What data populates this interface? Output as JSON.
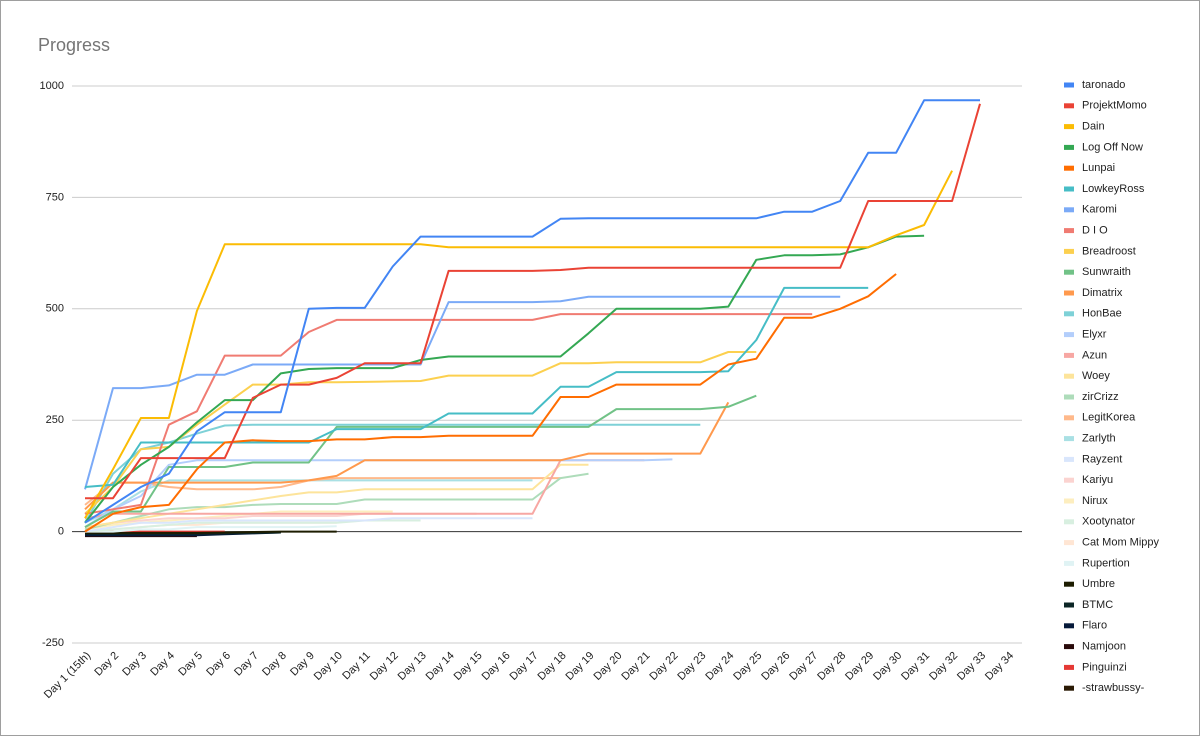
{
  "chart_data": {
    "type": "line",
    "title": "Progress",
    "categories": [
      "Day 1 (15th)",
      "Day 2",
      "Day 3",
      "Day 4",
      "Day 5",
      "Day 6",
      "Day 7",
      "Day 8",
      "Day 9",
      "Day 10",
      "Day 11",
      "Day 12",
      "Day 13",
      "Day 14",
      "Day 15",
      "Day 16",
      "Day 17",
      "Day 18",
      "Day 19",
      "Day 20",
      "Day 21",
      "Day 22",
      "Day 23",
      "Day 24",
      "Day 25",
      "Day 26",
      "Day 27",
      "Day 28",
      "Day 29",
      "Day 30",
      "Day 31",
      "Day 32",
      "Day 33",
      "Day 34"
    ],
    "ylim": [
      -250,
      1000
    ],
    "yticks": [
      -250,
      0,
      250,
      500,
      750,
      1000
    ],
    "grid": true,
    "legend": "right",
    "series": [
      {
        "name": "taronado",
        "color": "#4285f4",
        "values": [
          20,
          60,
          100,
          130,
          225,
          268,
          268,
          268,
          500,
          502,
          502,
          595,
          662,
          662,
          662,
          662,
          662,
          702,
          703,
          703,
          703,
          703,
          703,
          703,
          703,
          718,
          718,
          742,
          850,
          850,
          968,
          968,
          968,
          null
        ]
      },
      {
        "name": "ProjektMomo",
        "color": "#ea4335",
        "values": [
          75,
          75,
          165,
          165,
          165,
          165,
          300,
          330,
          330,
          345,
          378,
          378,
          378,
          585,
          585,
          585,
          585,
          587,
          592,
          592,
          592,
          592,
          592,
          592,
          592,
          592,
          592,
          592,
          742,
          742,
          742,
          742,
          960,
          null
        ]
      },
      {
        "name": "Dain",
        "color": "#fbbc04",
        "values": [
          30,
          140,
          255,
          255,
          495,
          645,
          645,
          645,
          645,
          645,
          645,
          645,
          645,
          638,
          638,
          638,
          638,
          638,
          638,
          638,
          638,
          638,
          638,
          638,
          638,
          638,
          638,
          638,
          638,
          665,
          688,
          810,
          null,
          null
        ]
      },
      {
        "name": "Log Off Now",
        "color": "#34a853",
        "values": [
          20,
          100,
          150,
          190,
          245,
          295,
          295,
          355,
          365,
          367,
          367,
          367,
          385,
          393,
          393,
          393,
          393,
          393,
          445,
          500,
          500,
          500,
          500,
          505,
          610,
          620,
          620,
          622,
          638,
          662,
          664,
          null,
          null,
          null
        ]
      },
      {
        "name": "Lunpai",
        "color": "#ff6d01",
        "values": [
          0,
          40,
          55,
          60,
          140,
          200,
          205,
          203,
          203,
          207,
          207,
          212,
          212,
          215,
          215,
          215,
          215,
          302,
          302,
          330,
          330,
          330,
          330,
          375,
          388,
          480,
          480,
          500,
          528,
          578,
          null,
          null,
          null,
          null
        ]
      },
      {
        "name": "LowkeyRoss",
        "color": "#46bdc6",
        "values": [
          100,
          105,
          200,
          200,
          200,
          200,
          200,
          200,
          200,
          230,
          230,
          230,
          230,
          265,
          265,
          265,
          265,
          325,
          325,
          358,
          358,
          358,
          358,
          360,
          430,
          547,
          547,
          547,
          547,
          null,
          null,
          null,
          null,
          null
        ]
      },
      {
        "name": "Karomi",
        "color": "#7baaf7",
        "values": [
          95,
          322,
          322,
          328,
          352,
          352,
          375,
          375,
          375,
          375,
          375,
          375,
          375,
          515,
          515,
          515,
          515,
          517,
          527,
          527,
          527,
          527,
          527,
          527,
          527,
          527,
          527,
          527,
          null,
          null,
          null,
          null,
          null,
          null
        ]
      },
      {
        "name": "D I O",
        "color": "#f07b72",
        "values": [
          40,
          50,
          60,
          240,
          270,
          395,
          395,
          395,
          448,
          475,
          475,
          475,
          475,
          475,
          475,
          475,
          475,
          488,
          488,
          488,
          488,
          488,
          488,
          488,
          488,
          488,
          488,
          null,
          null,
          null,
          null,
          null,
          null,
          null
        ]
      },
      {
        "name": "Breadroost",
        "color": "#fcd04f",
        "values": [
          40,
          100,
          185,
          190,
          240,
          285,
          330,
          330,
          335,
          335,
          336,
          337,
          338,
          350,
          350,
          350,
          350,
          378,
          378,
          380,
          380,
          380,
          380,
          403,
          403,
          null,
          null,
          null,
          null,
          null,
          null,
          null,
          null,
          null
        ]
      },
      {
        "name": "Sunwraith",
        "color": "#71c287",
        "values": [
          10,
          45,
          45,
          145,
          145,
          145,
          155,
          155,
          155,
          235,
          235,
          235,
          235,
          235,
          235,
          235,
          235,
          235,
          235,
          275,
          275,
          275,
          275,
          280,
          305,
          null,
          null,
          null,
          null,
          null,
          null,
          null,
          null,
          null
        ]
      },
      {
        "name": "Dimatrix",
        "color": "#ff994d",
        "values": [
          50,
          110,
          110,
          110,
          110,
          110,
          110,
          110,
          115,
          125,
          160,
          160,
          160,
          160,
          160,
          160,
          160,
          160,
          175,
          175,
          175,
          175,
          175,
          290,
          null,
          null,
          null,
          null,
          null,
          null,
          null,
          null,
          null,
          null
        ]
      },
      {
        "name": "HonBae",
        "color": "#7ed1d7",
        "values": [
          20,
          130,
          185,
          200,
          220,
          238,
          240,
          240,
          240,
          240,
          240,
          240,
          240,
          240,
          240,
          240,
          240,
          240,
          240,
          240,
          240,
          240,
          240,
          null,
          null,
          null,
          null,
          null,
          null,
          null,
          null,
          null,
          null,
          null
        ]
      },
      {
        "name": "Elyxr",
        "color": "#b3cefb",
        "values": [
          10,
          50,
          80,
          150,
          160,
          160,
          160,
          160,
          160,
          160,
          160,
          160,
          160,
          160,
          160,
          160,
          160,
          160,
          160,
          160,
          160,
          162,
          null,
          null,
          null,
          null,
          null,
          null,
          null,
          null,
          null,
          null,
          null,
          null
        ]
      },
      {
        "name": "Azun",
        "color": "#f7a7a3",
        "values": [
          30,
          40,
          40,
          40,
          40,
          40,
          40,
          40,
          40,
          40,
          40,
          40,
          40,
          40,
          40,
          40,
          40,
          160,
          160,
          160,
          160,
          null,
          null,
          null,
          null,
          null,
          null,
          null,
          null,
          null,
          null,
          null,
          null,
          null
        ]
      },
      {
        "name": "Woey",
        "color": "#fde49b",
        "values": [
          10,
          20,
          30,
          40,
          50,
          60,
          70,
          80,
          88,
          88,
          95,
          95,
          95,
          95,
          95,
          95,
          95,
          150,
          150,
          null,
          null,
          null,
          null,
          null,
          null,
          null,
          null,
          null,
          null,
          null,
          null,
          null,
          null,
          null
        ]
      },
      {
        "name": "zirCrizz",
        "color": "#aedcba",
        "values": [
          5,
          20,
          35,
          50,
          55,
          55,
          60,
          62,
          62,
          62,
          72,
          72,
          72,
          72,
          72,
          72,
          72,
          120,
          130,
          null,
          null,
          null,
          null,
          null,
          null,
          null,
          null,
          null,
          null,
          null,
          null,
          null,
          null,
          null
        ]
      },
      {
        "name": "LegitKorea",
        "color": "#ffb98b",
        "values": [
          60,
          110,
          110,
          100,
          95,
          95,
          95,
          100,
          115,
          120,
          120,
          120,
          120,
          120,
          120,
          120,
          120,
          120,
          null,
          null,
          null,
          null,
          null,
          null,
          null,
          null,
          null,
          null,
          null,
          null,
          null,
          null,
          null,
          null
        ]
      },
      {
        "name": "Zarlyth",
        "color": "#a9e0e4",
        "values": [
          20,
          50,
          90,
          115,
          115,
          115,
          115,
          115,
          115,
          115,
          115,
          115,
          115,
          115,
          115,
          115,
          115,
          null,
          null,
          null,
          null,
          null,
          null,
          null,
          null,
          null,
          null,
          null,
          null,
          null,
          null,
          null,
          null,
          null
        ]
      },
      {
        "name": "Rayzent",
        "color": "#d9e6fc",
        "values": [
          0,
          10,
          20,
          20,
          25,
          25,
          25,
          25,
          25,
          25,
          25,
          30,
          30,
          30,
          30,
          30,
          30,
          null,
          null,
          null,
          null,
          null,
          null,
          null,
          null,
          null,
          null,
          null,
          null,
          null,
          null,
          null,
          null,
          null
        ]
      },
      {
        "name": "Kariyu",
        "color": "#fbd3d0",
        "values": [
          10,
          20,
          25,
          30,
          30,
          30,
          35,
          35,
          35,
          35,
          40,
          40,
          40,
          40,
          40,
          null,
          null,
          null,
          null,
          null,
          null,
          null,
          null,
          null,
          null,
          null,
          null,
          null,
          null,
          null,
          null,
          null,
          null,
          null
        ]
      },
      {
        "name": "Nirux",
        "color": "#fdeebf",
        "values": [
          5,
          15,
          20,
          25,
          30,
          35,
          40,
          45,
          45,
          45,
          45,
          45,
          null,
          null,
          null,
          null,
          null,
          null,
          null,
          null,
          null,
          null,
          null,
          null,
          null,
          null,
          null,
          null,
          null,
          null,
          null,
          null,
          null,
          null
        ]
      },
      {
        "name": "Xootynator",
        "color": "#d8efe0",
        "values": [
          0,
          5,
          10,
          15,
          20,
          20,
          20,
          20,
          20,
          20,
          25,
          25,
          25,
          null,
          null,
          null,
          null,
          null,
          null,
          null,
          null,
          null,
          null,
          null,
          null,
          null,
          null,
          null,
          null,
          null,
          null,
          null,
          null,
          null
        ]
      },
      {
        "name": "Cat Mom Mippy",
        "color": "#ffe6d4",
        "values": [
          0,
          5,
          10,
          15,
          15,
          20,
          20,
          20,
          20,
          20,
          null,
          null,
          null,
          null,
          null,
          null,
          null,
          null,
          null,
          null,
          null,
          null,
          null,
          null,
          null,
          null,
          null,
          null,
          null,
          null,
          null,
          null,
          null,
          null
        ]
      },
      {
        "name": "Rupertion",
        "color": "#e0f3f4",
        "values": [
          0,
          0,
          5,
          5,
          10,
          10,
          10,
          10,
          10,
          12,
          null,
          null,
          null,
          null,
          null,
          null,
          null,
          null,
          null,
          null,
          null,
          null,
          null,
          null,
          null,
          null,
          null,
          null,
          null,
          null,
          null,
          null,
          null,
          null
        ]
      },
      {
        "name": "Umbre",
        "color": "#1c1c00",
        "values": [
          -3,
          -3,
          -3,
          -3,
          -3,
          -2,
          -1,
          0,
          0,
          0,
          null,
          null,
          null,
          null,
          null,
          null,
          null,
          null,
          null,
          null,
          null,
          null,
          null,
          null,
          null,
          null,
          null,
          null,
          null,
          null,
          null,
          null,
          null,
          null
        ]
      },
      {
        "name": "BTMC",
        "color": "#0c2626",
        "values": [
          -5,
          -5,
          -5,
          -5,
          -5,
          -4,
          -3,
          -2,
          null,
          null,
          null,
          null,
          null,
          null,
          null,
          null,
          null,
          null,
          null,
          null,
          null,
          null,
          null,
          null,
          null,
          null,
          null,
          null,
          null,
          null,
          null,
          null,
          null,
          null
        ]
      },
      {
        "name": "Flaro",
        "color": "#061a3a",
        "values": [
          -8,
          -8,
          -8,
          -8,
          -8,
          -6,
          -4,
          -2,
          null,
          null,
          null,
          null,
          null,
          null,
          null,
          null,
          null,
          null,
          null,
          null,
          null,
          null,
          null,
          null,
          null,
          null,
          null,
          null,
          null,
          null,
          null,
          null,
          null,
          null
        ]
      },
      {
        "name": "Namjoon",
        "color": "#2a0a0a",
        "values": [
          -10,
          -10,
          -10,
          -10,
          -10,
          null,
          null,
          null,
          null,
          null,
          null,
          null,
          null,
          null,
          null,
          null,
          null,
          null,
          null,
          null,
          null,
          null,
          null,
          null,
          null,
          null,
          null,
          null,
          null,
          null,
          null,
          null,
          null,
          null
        ]
      },
      {
        "name": "Pinguinzi",
        "color": "#e53935",
        "values": [
          0,
          0,
          0,
          0,
          0,
          0,
          null,
          null,
          null,
          null,
          null,
          null,
          null,
          null,
          null,
          null,
          null,
          null,
          null,
          null,
          null,
          null,
          null,
          null,
          null,
          null,
          null,
          null,
          null,
          null,
          null,
          null,
          null,
          null
        ]
      },
      {
        "name": "-strawbussy-",
        "color": "#2b1a05",
        "values": [
          -2,
          -2,
          -2,
          null,
          null,
          null,
          null,
          null,
          null,
          null,
          null,
          null,
          null,
          null,
          null,
          null,
          null,
          null,
          null,
          null,
          null,
          null,
          null,
          null,
          null,
          null,
          null,
          null,
          null,
          null,
          null,
          null,
          null,
          null
        ]
      }
    ]
  }
}
